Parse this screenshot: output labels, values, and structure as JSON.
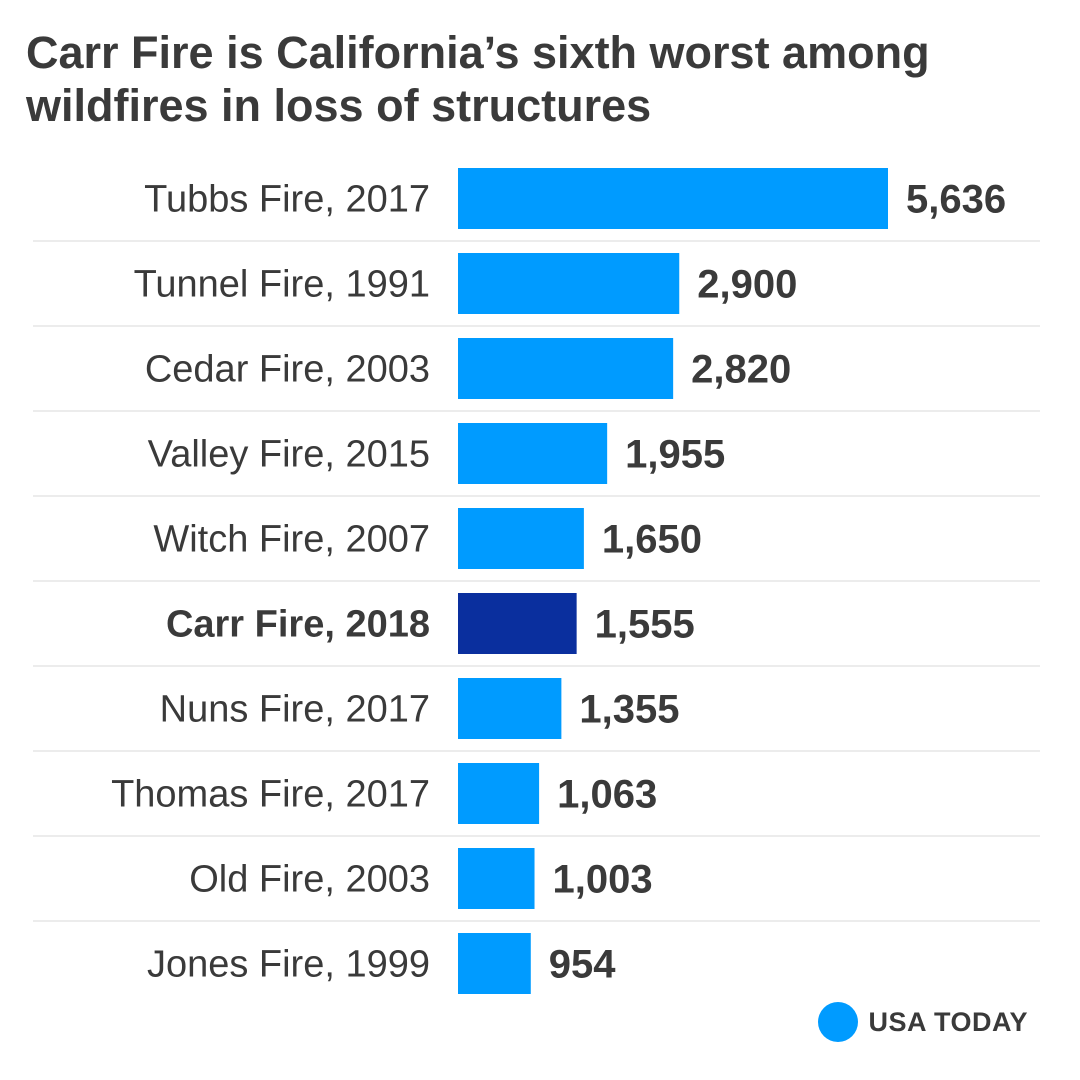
{
  "chart_data": {
    "type": "bar",
    "orientation": "horizontal",
    "title": "Carr Fire is California’s sixth worst among wildfires in loss of structures",
    "categories": [
      "Tubbs Fire, 2017",
      "Tunnel Fire, 1991",
      "Cedar Fire, 2003",
      "Valley Fire, 2015",
      "Witch Fire, 2007",
      "Carr Fire, 2018",
      "Nuns Fire, 2017",
      "Thomas Fire, 2017",
      "Old Fire, 2003",
      "Jones Fire, 1999"
    ],
    "values": [
      5636,
      2900,
      2820,
      1955,
      1650,
      1555,
      1355,
      1063,
      1003,
      954
    ],
    "value_labels": [
      "5,636",
      "2,900",
      "2,820",
      "1,955",
      "1,650",
      "1,555",
      "1,355",
      "1,063",
      "1,003",
      "954"
    ],
    "highlight": "Carr Fire, 2018",
    "colors": {
      "bar": "#009bff",
      "highlight": "#0a2f9e",
      "gridline": "#e6e6e6",
      "text": "#3a3a3a"
    },
    "xlim": [
      0,
      5636
    ],
    "grid": false,
    "separators": true
  },
  "source": {
    "logo_text": "USA TODAY",
    "logo_color": "#009bff"
  }
}
